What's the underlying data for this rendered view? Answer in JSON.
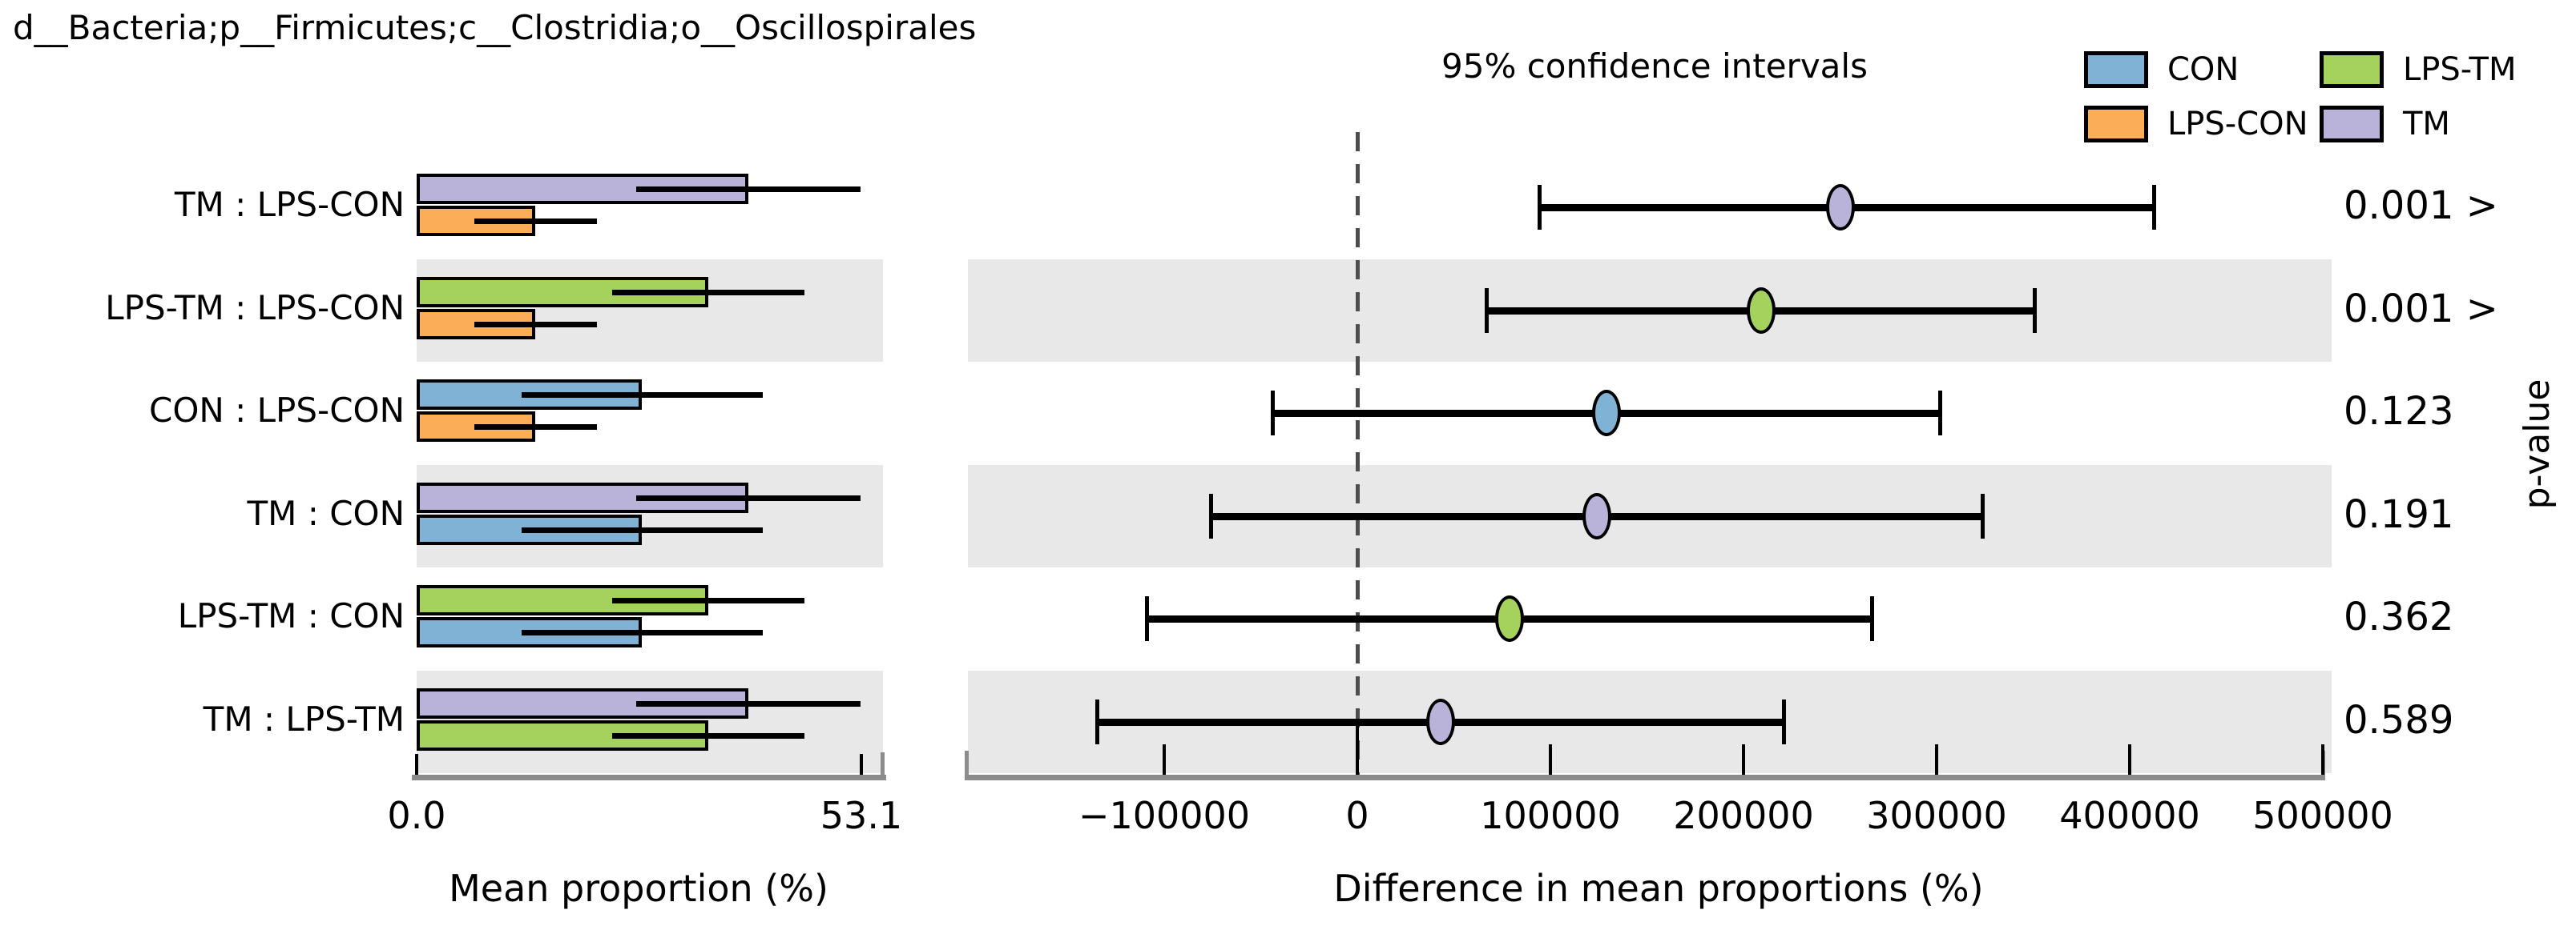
{
  "title": "d__Bacteria;p__Firmicutes;c__Clostridia;o__Oscillospirales",
  "legend": {
    "items": [
      {
        "label": "CON",
        "color": "#7fb2d4"
      },
      {
        "label": "LPS-CON",
        "color": "#fcad57"
      },
      {
        "label": "LPS-TM",
        "color": "#a5d25c"
      },
      {
        "label": "TM",
        "color": "#b9b3d9"
      }
    ]
  },
  "colors": {
    "band": "#e8e8e8",
    "axis": "#8c8c8c",
    "zero_line": "#4d4d4d",
    "text": "#000000"
  },
  "chart_data": {
    "type": "extended_error_bar",
    "title": "d__Bacteria;p__Firmicutes;c__Clostridia;o__Oscillospirales",
    "left_panel": {
      "xlabel": "Mean proportion (%)",
      "xlim": [
        0,
        55.9
      ],
      "xticks": [
        {
          "value": 0,
          "label": "0.0"
        },
        {
          "value": 53.1,
          "label": "53.1"
        }
      ],
      "groups": {
        "CON": {
          "color": "#7fb2d4",
          "mean": 26.9,
          "ci": 14.4
        },
        "LPS-CON": {
          "color": "#fcad57",
          "mean": 14.2,
          "ci": 7.3
        },
        "LPS-TM": {
          "color": "#a5d25c",
          "mean": 34.8,
          "ci": 11.5
        },
        "TM": {
          "color": "#b9b3d9",
          "mean": 39.6,
          "ci": 13.4
        }
      }
    },
    "right_panel": {
      "title": "95% confidence intervals",
      "xlabel": "Difference in mean proportions (%)",
      "ylabel": "p-value",
      "xlim": [
        -203000,
        501000
      ],
      "zero_line": 0,
      "xticks": [
        {
          "value": -100000,
          "label": "−100000"
        },
        {
          "value": 0,
          "label": "0"
        },
        {
          "value": 100000,
          "label": "100000"
        },
        {
          "value": 200000,
          "label": "200000"
        },
        {
          "value": 300000,
          "label": "300000"
        },
        {
          "value": 400000,
          "label": "400000"
        },
        {
          "value": 500000,
          "label": "500000"
        }
      ]
    },
    "comparisons": [
      {
        "label": "TM : LPS-CON",
        "group_top": "TM",
        "group_bottom": "LPS-CON",
        "diff": {
          "mean": 250000,
          "lo": 94000,
          "hi": 413000
        },
        "dot_group": "TM",
        "p_value": "0.001 >",
        "shaded": false
      },
      {
        "label": "LPS-TM : LPS-CON",
        "group_top": "LPS-TM",
        "group_bottom": "LPS-CON",
        "diff": {
          "mean": 209000,
          "lo": 67000,
          "hi": 351000
        },
        "dot_group": "LPS-TM",
        "p_value": "0.001 >",
        "shaded": true
      },
      {
        "label": "CON : LPS-CON",
        "group_top": "CON",
        "group_bottom": "LPS-CON",
        "diff": {
          "mean": 129000,
          "lo": -44000,
          "hi": 302000
        },
        "dot_group": "CON",
        "p_value": "0.123",
        "shaded": false
      },
      {
        "label": "TM : CON",
        "group_top": "TM",
        "group_bottom": "CON",
        "diff": {
          "mean": 124000,
          "lo": -76000,
          "hi": 324000
        },
        "dot_group": "TM",
        "p_value": "0.191",
        "shaded": true
      },
      {
        "label": "LPS-TM : CON",
        "group_top": "LPS-TM",
        "group_bottom": "CON",
        "diff": {
          "mean": 79000,
          "lo": -109000,
          "hi": 267000
        },
        "dot_group": "LPS-TM",
        "p_value": "0.362",
        "shaded": false
      },
      {
        "label": "TM : LPS-TM",
        "group_top": "TM",
        "group_bottom": "LPS-TM",
        "diff": {
          "mean": 43000,
          "lo": -135000,
          "hi": 221000
        },
        "dot_group": "TM",
        "p_value": "0.589",
        "shaded": true
      }
    ]
  }
}
